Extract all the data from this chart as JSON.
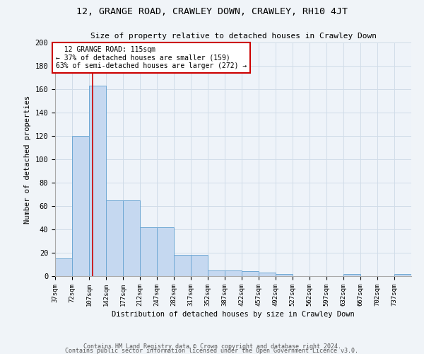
{
  "title": "12, GRANGE ROAD, CRAWLEY DOWN, CRAWLEY, RH10 4JT",
  "subtitle": "Size of property relative to detached houses in Crawley Down",
  "xlabel": "Distribution of detached houses by size in Crawley Down",
  "ylabel": "Number of detached properties",
  "bar_values": [
    15,
    120,
    163,
    65,
    65,
    42,
    42,
    18,
    18,
    5,
    5,
    4,
    3,
    2,
    0,
    0,
    0,
    2,
    0,
    0,
    2
  ],
  "bin_edges": [
    37,
    72,
    107,
    142,
    177,
    212,
    247,
    282,
    317,
    352,
    387,
    422,
    457,
    492,
    527,
    562,
    597,
    632,
    667,
    702,
    737,
    772
  ],
  "tick_labels": [
    "37sqm",
    "72sqm",
    "107sqm",
    "142sqm",
    "177sqm",
    "212sqm",
    "247sqm",
    "282sqm",
    "317sqm",
    "352sqm",
    "387sqm",
    "422sqm",
    "457sqm",
    "492sqm",
    "527sqm",
    "562sqm",
    "597sqm",
    "632sqm",
    "667sqm",
    "702sqm",
    "737sqm"
  ],
  "bar_color": "#c5d8f0",
  "bar_edge_color": "#6fa8d4",
  "red_line_x": 115,
  "annotation_text": "  12 GRANGE ROAD: 115sqm\n← 37% of detached houses are smaller (159)\n63% of semi-detached houses are larger (272) →",
  "annotation_box_color": "#ffffff",
  "annotation_box_edge": "#cc0000",
  "grid_color": "#d0dce8",
  "bg_color": "#eef3f9",
  "fig_bg_color": "#f0f4f8",
  "ylim": [
    0,
    200
  ],
  "yticks": [
    0,
    20,
    40,
    60,
    80,
    100,
    120,
    140,
    160,
    180,
    200
  ],
  "footer1": "Contains HM Land Registry data © Crown copyright and database right 2024.",
  "footer2": "Contains public sector information licensed under the Open Government Licence v3.0."
}
